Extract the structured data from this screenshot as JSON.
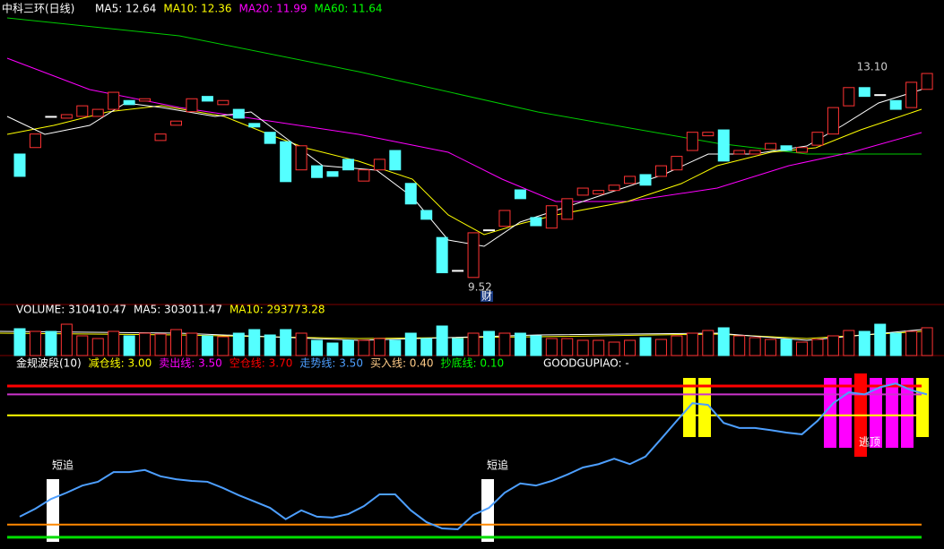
{
  "price_panel": {
    "title": "中科三环(日线)",
    "ma_labels": [
      {
        "text": "MA5: 12.64",
        "color": "#ffffff"
      },
      {
        "text": "MA10: 12.36",
        "color": "#ffff00"
      },
      {
        "text": "MA20: 11.99",
        "color": "#ff00ff"
      },
      {
        "text": "MA60: 11.64",
        "color": "#00ff00"
      }
    ],
    "high_label": "13.10",
    "low_label": "9.52",
    "note_label": "财",
    "ylim": [
      9.06,
      14.24
    ],
    "candles": {
      "open": [
        11.62,
        11.73,
        12.26,
        12.23,
        12.26,
        12.26,
        12.38,
        12.53,
        12.52,
        11.85,
        12.11,
        12.34,
        12.6,
        12.46,
        12.38,
        12.14,
        11.99,
        11.83,
        11.35,
        11.42,
        11.32,
        11.53,
        11.16,
        11.35,
        11.68,
        11.12,
        10.66,
        10.2,
        9.64,
        9.52,
        10.33,
        10.39,
        11.01,
        10.54,
        10.36,
        10.51,
        10.92,
        10.94,
        11.0,
        11.12,
        11.27,
        11.24,
        11.35,
        11.68,
        11.93,
        12.03,
        11.62,
        11.62,
        11.7,
        11.76,
        11.65,
        11.77,
        11.96,
        12.44,
        12.75,
        12.63,
        12.53,
        12.41,
        12.72
      ],
      "close": [
        11.24,
        11.96,
        12.26,
        12.29,
        12.44,
        12.38,
        12.67,
        12.46,
        12.56,
        11.96,
        12.18,
        12.56,
        12.52,
        12.53,
        12.23,
        12.08,
        11.8,
        11.15,
        11.76,
        11.22,
        11.24,
        11.35,
        11.35,
        11.53,
        11.35,
        10.77,
        10.51,
        9.6,
        9.64,
        10.28,
        10.33,
        10.66,
        10.86,
        10.4,
        10.74,
        10.86,
        11.04,
        11.0,
        11.09,
        11.24,
        11.09,
        11.42,
        11.58,
        11.99,
        11.99,
        11.5,
        11.68,
        11.68,
        11.8,
        11.68,
        11.73,
        11.99,
        12.41,
        12.75,
        12.6,
        12.63,
        12.38,
        12.84,
        12.99
      ]
    }
  },
  "volume_panel": {
    "labels": [
      {
        "text": "VOLUME: 310410.47",
        "color": "#ffffff"
      },
      {
        "text": "MA5: 303011.47",
        "color": "#ffffff"
      },
      {
        "text": "MA10: 293773.28",
        "color": "#ffff00"
      }
    ],
    "ylim": [
      0,
      470000
    ],
    "values": [
      300000,
      270000,
      270000,
      350000,
      220000,
      190000,
      270000,
      220000,
      250000,
      240000,
      290000,
      250000,
      220000,
      210000,
      250000,
      290000,
      230000,
      290000,
      250000,
      170000,
      140000,
      170000,
      170000,
      190000,
      170000,
      250000,
      190000,
      330000,
      190000,
      250000,
      270000,
      250000,
      250000,
      220000,
      190000,
      190000,
      170000,
      170000,
      150000,
      170000,
      200000,
      180000,
      220000,
      250000,
      280000,
      310000,
      220000,
      200000,
      180000,
      180000,
      150000,
      180000,
      220000,
      280000,
      270000,
      350000,
      250000,
      270000,
      310410.47
    ]
  },
  "indicator_panel": {
    "labels": [
      {
        "text": "金规波段(10)",
        "color": "#ffffff"
      },
      {
        "text": "减仓线: 3.00",
        "color": "#ffff00"
      },
      {
        "text": "卖出线: 3.50",
        "color": "#ff00ff"
      },
      {
        "text": "空仓线: 3.70",
        "color": "#ff0000"
      },
      {
        "text": "走势线: 3.50",
        "color": "#4d9fff"
      },
      {
        "text": "买入线: 0.40",
        "color": "#ffcc88"
      },
      {
        "text": "抄底线: 0.10",
        "color": "#00ff00"
      }
    ],
    "extra_label": "GOODGUPIAO: -",
    "ylim": [
      -0.18,
      4.36
    ],
    "lines": [
      {
        "value": 3.7,
        "color": "#ff0000"
      },
      {
        "value": 3.5,
        "color": "#cc33cc"
      },
      {
        "value": 3.0,
        "color": "#ffff00"
      },
      {
        "value": 0.4,
        "color": "#ff8800"
      },
      {
        "value": 0.1,
        "color": "#00dd00"
      }
    ],
    "trend": [
      0.59,
      0.78,
      1.01,
      1.16,
      1.33,
      1.42,
      1.65,
      1.65,
      1.7,
      1.55,
      1.48,
      1.44,
      1.42,
      1.27,
      1.1,
      0.95,
      0.8,
      0.53,
      0.74,
      0.59,
      0.57,
      0.65,
      0.84,
      1.12,
      1.12,
      0.74,
      0.46,
      0.31,
      0.29,
      0.63,
      0.8,
      1.16,
      1.38,
      1.33,
      1.44,
      1.59,
      1.76,
      1.84,
      1.97,
      1.84,
      2.02,
      2.44,
      2.87,
      3.29,
      3.25,
      2.82,
      2.7,
      2.7,
      2.65,
      2.59,
      2.55,
      2.87,
      3.29,
      3.55,
      3.5,
      3.67,
      3.76,
      3.6,
      3.5
    ],
    "tags": [
      "短追",
      "短追",
      "逃顶"
    ]
  }
}
